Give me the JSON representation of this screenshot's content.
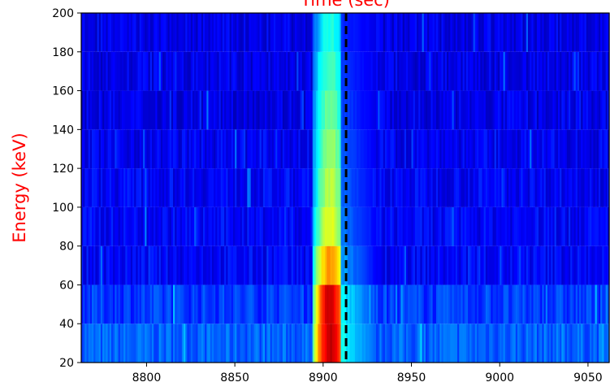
{
  "chart_data": {
    "type": "heatmap",
    "title": "Time (sec)",
    "xlabel": "",
    "ylabel": "Energy (keV)",
    "label_color": "#ff0000",
    "colormap": "jet",
    "xlim": [
      8763,
      9062
    ],
    "ylim": [
      20,
      200
    ],
    "x_ticks": [
      8800,
      8850,
      8900,
      8950,
      9000,
      9050
    ],
    "y_ticks": [
      20,
      40,
      60,
      80,
      100,
      120,
      140,
      160,
      180,
      200
    ],
    "energy_bins": [
      20,
      40,
      60,
      80,
      100,
      120,
      140,
      160,
      180,
      200
    ],
    "time_bin_width": 1,
    "background_level_by_band": [
      0.22,
      0.18,
      0.12,
      0.12,
      0.12,
      0.11,
      0.1,
      0.1,
      0.1
    ],
    "burst": {
      "peak_time": 8904,
      "main_start": 8894,
      "main_end": 8910,
      "tail_end": 8930,
      "band_peak_intensity": [
        0.93,
        0.92,
        0.72,
        0.6,
        0.55,
        0.52,
        0.48,
        0.45,
        0.4
      ]
    },
    "marker_line": {
      "x": 8913,
      "style": "dashed",
      "color": "#000000"
    }
  }
}
